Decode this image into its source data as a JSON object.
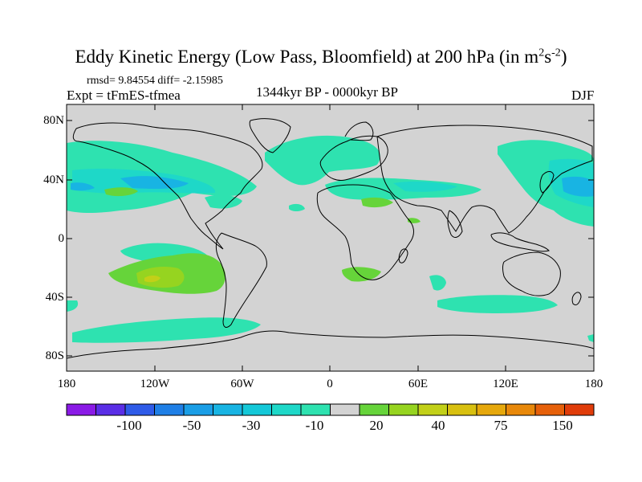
{
  "title": {
    "main": "Eddy Kinetic Energy (Low Pass, Bloomfield) at 200 hPa (in m",
    "exp1": "2",
    "mid": "s",
    "exp2": "-2",
    "close": ")"
  },
  "stats": {
    "text": "rmsd= 9.84554 diff= -2.15985"
  },
  "experiment": {
    "text": "Expt = tFmES-tfmea"
  },
  "period": {
    "text": "1344kyr BP - 0000kyr BP"
  },
  "season": {
    "text": "DJF"
  },
  "lat_labels": [
    "80N",
    "40N",
    "0",
    "40S",
    "80S"
  ],
  "lon_labels": [
    "180",
    "120W",
    "60W",
    "0",
    "60E",
    "120E",
    "180"
  ],
  "colorbar": {
    "colors": [
      "#8a1ae6",
      "#5a2ee6",
      "#2f5be8",
      "#1f7fe6",
      "#1a9ee6",
      "#18b4e3",
      "#14c8d8",
      "#1ed8c8",
      "#2ee2b0",
      "#d3d3d3",
      "#66d43a",
      "#96d420",
      "#c2d018",
      "#d8c010",
      "#e6a80c",
      "#e8880a",
      "#e6600a",
      "#e03c0a"
    ],
    "labels": [
      "-100",
      "-50",
      "-30",
      "-10",
      "20",
      "40",
      "75",
      "150"
    ]
  },
  "legend_colors": {
    "neutral": "#d3d3d3",
    "neg_light": "#2ee2b0",
    "neg_mid": "#1ed8c8",
    "neg_strong": "#18b4e3",
    "pos_light": "#66d43a",
    "pos_mid": "#96d420",
    "pos_strong": "#c2d018"
  }
}
